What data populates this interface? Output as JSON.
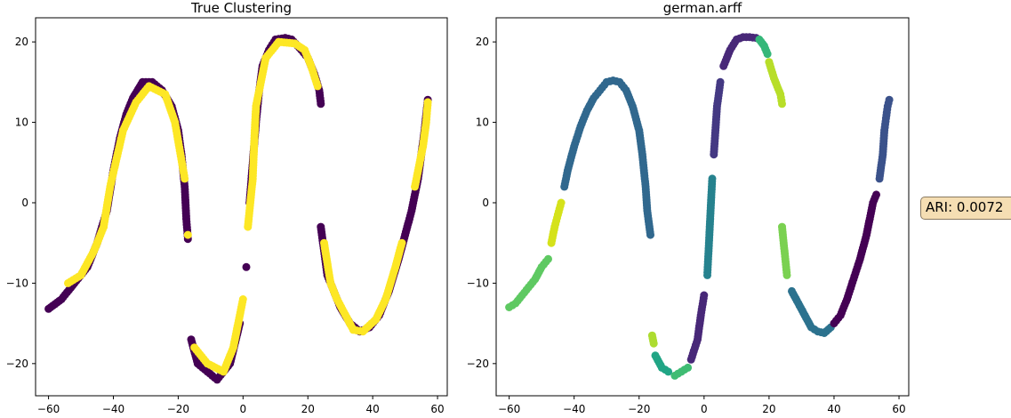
{
  "chart_data": [
    {
      "type": "scatter",
      "title": "True Clustering",
      "xlabel": "",
      "ylabel": "",
      "xlim": [
        -64,
        63
      ],
      "ylim": [
        -24,
        23
      ],
      "xticks": [
        -60,
        -40,
        -20,
        0,
        20,
        40,
        60
      ],
      "yticks": [
        -20,
        -10,
        0,
        10,
        20
      ],
      "xtick_labels": [
        "−60",
        "−40",
        "−20",
        "0",
        "20",
        "40",
        "60"
      ],
      "ytick_labels": [
        "−20",
        "−10",
        "0",
        "10",
        "20"
      ],
      "colors": {
        "class_0": "#440154",
        "class_1": "#fde725"
      },
      "series": [
        {
          "color": "#440154",
          "points": [
            [
              -60,
              -13.2
            ],
            [
              -56,
              -12
            ],
            [
              -52,
              -10
            ],
            [
              -48,
              -8
            ],
            [
              -45,
              -5
            ],
            [
              -42,
              -1
            ],
            [
              -40,
              4
            ],
            [
              -38,
              8
            ],
            [
              -36,
              11
            ],
            [
              -34,
              13
            ],
            [
              -31,
              15
            ],
            [
              -28,
              15
            ],
            [
              -25,
              14
            ],
            [
              -22,
              12
            ],
            [
              -20,
              9
            ],
            [
              -19,
              6
            ],
            [
              -18,
              2
            ],
            [
              -17.5,
              -2
            ],
            [
              -17,
              -4.5
            ],
            [
              -16,
              -17
            ],
            [
              -14,
              -20
            ],
            [
              -11,
              -21
            ],
            [
              -8,
              -22
            ],
            [
              -4,
              -20
            ],
            [
              -1,
              -15
            ],
            [
              1,
              -8
            ],
            [
              2,
              0
            ],
            [
              3,
              5
            ],
            [
              4,
              10
            ],
            [
              5,
              14
            ],
            [
              6,
              17
            ],
            [
              8,
              19
            ],
            [
              10,
              20.3
            ],
            [
              13,
              20.5
            ],
            [
              15,
              20.3
            ],
            [
              18,
              19
            ],
            [
              20,
              18
            ],
            [
              22,
              16
            ],
            [
              23.5,
              14
            ],
            [
              24,
              12.3
            ],
            [
              24,
              -3
            ],
            [
              25,
              -6
            ],
            [
              26,
              -9
            ],
            [
              28,
              -11
            ],
            [
              30,
              -13
            ],
            [
              33,
              -15
            ],
            [
              36,
              -16
            ],
            [
              39,
              -15.5
            ],
            [
              42,
              -14
            ],
            [
              45,
              -11
            ],
            [
              48,
              -7
            ],
            [
              50,
              -4
            ],
            [
              52,
              -1
            ],
            [
              54,
              3
            ],
            [
              55,
              6
            ],
            [
              56,
              9
            ],
            [
              57,
              12.8
            ]
          ]
        },
        {
          "color": "#fde725",
          "points": [
            [
              -54,
              -10
            ],
            [
              -50,
              -9
            ],
            [
              -46,
              -6
            ],
            [
              -43,
              -3
            ],
            [
              -41,
              2
            ],
            [
              -39,
              5.5
            ],
            [
              -37,
              9
            ],
            [
              -33,
              12.5
            ],
            [
              -29,
              14.5
            ],
            [
              -24,
              13.5
            ],
            [
              -21,
              10
            ],
            [
              -19.5,
              6.5
            ],
            [
              -18,
              3
            ],
            [
              -17,
              -4
            ],
            [
              -15,
              -18
            ],
            [
              -11,
              -20
            ],
            [
              -6,
              -21
            ],
            [
              -3,
              -18
            ],
            [
              0,
              -12
            ],
            [
              1.5,
              -3
            ],
            [
              3,
              3
            ],
            [
              3.5,
              8
            ],
            [
              4,
              12
            ],
            [
              7,
              18
            ],
            [
              11,
              20
            ],
            [
              16,
              19.8
            ],
            [
              19,
              19
            ],
            [
              21,
              17
            ],
            [
              23,
              14.5
            ],
            [
              25,
              -5
            ],
            [
              27,
              -10
            ],
            [
              29,
              -12
            ],
            [
              34,
              -15.8
            ],
            [
              37,
              -16
            ],
            [
              41,
              -14.5
            ],
            [
              44,
              -12
            ],
            [
              47,
              -8
            ],
            [
              49,
              -5
            ],
            [
              53,
              2
            ],
            [
              55.5,
              7
            ],
            [
              56.5,
              10
            ],
            [
              57,
              12.5
            ]
          ]
        }
      ]
    },
    {
      "type": "scatter",
      "title": "german.arff",
      "xlabel": "",
      "ylabel": "",
      "xlim": [
        -64,
        63
      ],
      "ylim": [
        -24,
        23
      ],
      "xticks": [
        -60,
        -40,
        -20,
        0,
        20,
        40,
        60
      ],
      "yticks": [
        -20,
        -10,
        0,
        10,
        20
      ],
      "xtick_labels": [
        "−60",
        "−40",
        "−20",
        "0",
        "20",
        "40",
        "60"
      ],
      "ytick_labels": [
        "−20",
        "−10",
        "0",
        "10",
        "20"
      ],
      "series": [
        {
          "color": "#5ec962",
          "points": [
            [
              -60,
              -13
            ],
            [
              -58,
              -12.5
            ],
            [
              -56,
              -11.5
            ],
            [
              -54,
              -10.5
            ],
            [
              -52,
              -9.5
            ],
            [
              -50,
              -8
            ],
            [
              -48,
              -7
            ]
          ]
        },
        {
          "color": "#d5e21a",
          "points": [
            [
              -47,
              -5
            ],
            [
              -46,
              -3
            ],
            [
              -45,
              -1.5
            ],
            [
              -44,
              0
            ]
          ]
        },
        {
          "color": "#31688e",
          "points": [
            [
              -43,
              2
            ],
            [
              -42,
              4
            ],
            [
              -40,
              7
            ],
            [
              -38,
              9.5
            ],
            [
              -36,
              11.5
            ],
            [
              -34,
              13
            ],
            [
              -32,
              14
            ],
            [
              -30,
              15
            ],
            [
              -28,
              15.2
            ],
            [
              -26,
              15
            ],
            [
              -24,
              14
            ],
            [
              -22,
              12
            ],
            [
              -20,
              9
            ],
            [
              -19,
              6
            ],
            [
              -18,
              2
            ],
            [
              -17.5,
              -1
            ],
            [
              -16.5,
              -4
            ]
          ]
        },
        {
          "color": "#addc30",
          "points": [
            [
              -16,
              -16.5
            ],
            [
              -15.5,
              -17.5
            ]
          ]
        },
        {
          "color": "#21a585",
          "points": [
            [
              -15,
              -19
            ],
            [
              -13,
              -20.5
            ],
            [
              -11,
              -21
            ]
          ]
        },
        {
          "color": "#3fbc73",
          "points": [
            [
              -9,
              -21.5
            ],
            [
              -7,
              -21
            ],
            [
              -5,
              -20.5
            ]
          ]
        },
        {
          "color": "#482878",
          "points": [
            [
              -4,
              -19.5
            ],
            [
              -2,
              -17
            ],
            [
              -1,
              -14
            ],
            [
              0,
              -11.5
            ],
            [
              6,
              17
            ],
            [
              8,
              19
            ],
            [
              10,
              20.3
            ],
            [
              12,
              20.6
            ],
            [
              14,
              20.6
            ],
            [
              16,
              20.5
            ]
          ]
        },
        {
          "color": "#26828e",
          "points": [
            [
              1,
              -9
            ],
            [
              1.5,
              -5
            ],
            [
              2,
              -1
            ],
            [
              2.5,
              3
            ]
          ]
        },
        {
          "color": "#443983",
          "points": [
            [
              3,
              6
            ],
            [
              3.5,
              9
            ],
            [
              4,
              12
            ],
            [
              5,
              15
            ]
          ]
        },
        {
          "color": "#35b779",
          "points": [
            [
              17,
              20.3
            ],
            [
              18.5,
              19.5
            ],
            [
              19.5,
              18.5
            ]
          ]
        },
        {
          "color": "#b8de29",
          "points": [
            [
              20,
              17.5
            ],
            [
              21.5,
              15.5
            ],
            [
              22.5,
              14.5
            ],
            [
              23.5,
              13.5
            ],
            [
              24,
              12.3
            ]
          ]
        },
        {
          "color": "#7ad151",
          "points": [
            [
              24,
              -3
            ],
            [
              24.5,
              -5
            ],
            [
              25,
              -7
            ],
            [
              25.5,
              -9
            ]
          ]
        },
        {
          "color": "#2c728e",
          "points": [
            [
              27,
              -11
            ],
            [
              29,
              -12.5
            ],
            [
              31,
              -14
            ],
            [
              33,
              -15.5
            ],
            [
              35,
              -16
            ],
            [
              37,
              -16.2
            ],
            [
              39,
              -15.5
            ]
          ]
        },
        {
          "color": "#440154",
          "points": [
            [
              40,
              -15
            ],
            [
              42,
              -14
            ],
            [
              44,
              -12
            ],
            [
              46,
              -9.5
            ],
            [
              48,
              -7
            ],
            [
              50,
              -4
            ],
            [
              52,
              0
            ],
            [
              53,
              1
            ]
          ]
        },
        {
          "color": "#3b528b",
          "points": [
            [
              54,
              3
            ],
            [
              55,
              6
            ],
            [
              55.5,
              9
            ],
            [
              56,
              10.5
            ],
            [
              56.5,
              12
            ],
            [
              57,
              12.8
            ]
          ]
        }
      ]
    }
  ],
  "annotation": {
    "text": "ARI: 0.0072"
  }
}
